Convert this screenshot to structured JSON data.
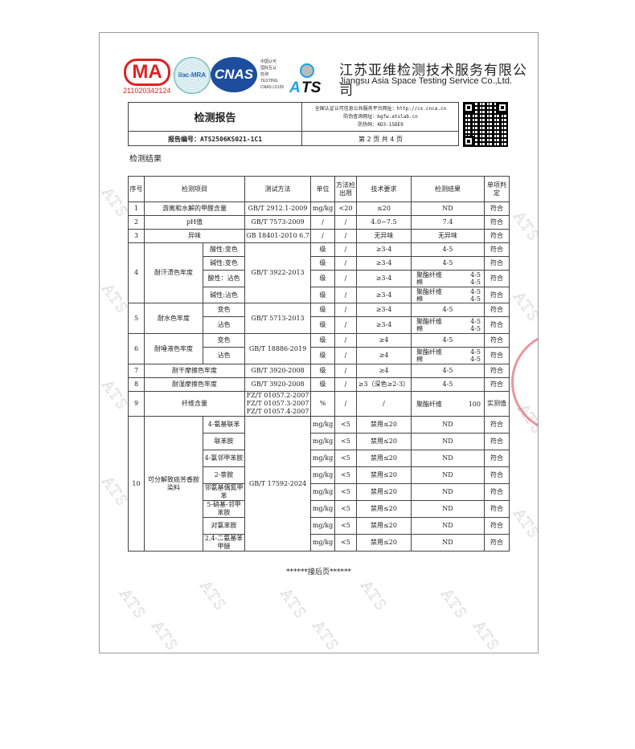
{
  "watermark": "ATS",
  "logos": {
    "cma": "MA",
    "cma_number": "211020342124",
    "ilac": "ilac-MRA",
    "cnas": "CNAS",
    "cnas_text": [
      "中国认可",
      "国际互认",
      "检测",
      "TESTING",
      "CNAS L5155"
    ],
    "ats": "ATS"
  },
  "company": {
    "name_cn": "江苏亚维检测技术服务有限公司",
    "name_en": "Jiangsu Asia Space Testing Service Co.,Ltd."
  },
  "report": {
    "title": "检测报告",
    "number": "报告编号：ATS2506KS021-1C1",
    "page": "第 2 页 共 4 页",
    "cnca": "全国认证认可信息公共服务平台网址：http://cx.cnca.cn",
    "verify_site": "防伪查询网址：bgfw.atslab.cn",
    "verify_code": "防伪码：4D3-15DE9"
  },
  "section_title": "检测结果",
  "table": {
    "headers": [
      "序号",
      "检测项目",
      "测试方法",
      "单位",
      "方法检出限",
      "技术要求",
      "检测结果",
      "单项判定"
    ],
    "groups": [
      {
        "no": "1",
        "item": "游离和水解的甲醛含量",
        "method": "GB/T 2912.1-2009",
        "rows": [
          {
            "unit": "mg/kg",
            "limit": "<20",
            "req": "≤20",
            "result": "ND",
            "verdict": "符合"
          }
        ]
      },
      {
        "no": "2",
        "item": "pH值",
        "method": "GB/T 7573-2009",
        "rows": [
          {
            "unit": "/",
            "limit": "/",
            "req": "4.0~7.5",
            "result": "7.4",
            "verdict": "符合"
          }
        ]
      },
      {
        "no": "3",
        "item": "异味",
        "method": "GB 18401-2010 6.7",
        "rows": [
          {
            "unit": "/",
            "limit": "/",
            "req": "无异味",
            "result": "无异味",
            "verdict": "符合"
          }
        ]
      },
      {
        "no": "4",
        "item": "耐汗渍色牢度",
        "method": "GB/T 3922-2013",
        "rows": [
          {
            "sub": "酸性:变色",
            "unit": "级",
            "limit": "/",
            "req": "≥3-4",
            "result": "4-5",
            "verdict": "符合"
          },
          {
            "sub": "碱性:变色",
            "unit": "级",
            "limit": "/",
            "req": "≥3-4",
            "result": "4-5",
            "verdict": "符合"
          },
          {
            "sub": "酸性：沾色",
            "unit": "级",
            "limit": "/",
            "req": "≥3-4",
            "result_multi": [
              [
                "聚酯纤维",
                "4-5"
              ],
              [
                "棉",
                "4-5"
              ]
            ],
            "verdict": "符合"
          },
          {
            "sub": "碱性:沾色",
            "unit": "级",
            "limit": "/",
            "req": "≥3-4",
            "result_multi": [
              [
                "聚酯纤维",
                "4-5"
              ],
              [
                "棉",
                "4-5"
              ]
            ],
            "verdict": "符合"
          }
        ]
      },
      {
        "no": "5",
        "item": "耐水色牢度",
        "method": "GB/T 5713-2013",
        "rows": [
          {
            "sub": "变色",
            "unit": "级",
            "limit": "/",
            "req": "≥3-4",
            "result": "4-5",
            "verdict": "符合"
          },
          {
            "sub": "沾色",
            "unit": "级",
            "limit": "/",
            "req": "≥3-4",
            "result_multi": [
              [
                "聚酯纤维",
                "4-5"
              ],
              [
                "棉",
                "4-5"
              ]
            ],
            "verdict": "符合"
          }
        ]
      },
      {
        "no": "6",
        "item": "耐唾液色牢度",
        "method": "GB/T  18886-2019",
        "rows": [
          {
            "sub": "变色",
            "unit": "级",
            "limit": "/",
            "req": "≥4",
            "result": "4-5",
            "verdict": "符合"
          },
          {
            "sub": "沾色",
            "unit": "级",
            "limit": "/",
            "req": "≥4",
            "result_multi": [
              [
                "聚酯纤维",
                "4-5"
              ],
              [
                "棉",
                "4-5"
              ]
            ],
            "verdict": "符合"
          }
        ]
      },
      {
        "no": "7",
        "item": "耐干摩擦色牢度",
        "method": "GB/T 3920-2008",
        "rows": [
          {
            "unit": "级",
            "limit": "/",
            "req": "≥4",
            "result": "4-5",
            "verdict": "符合"
          }
        ]
      },
      {
        "no": "8",
        "item": "耐湿摩擦色牢度",
        "method": "GB/T 3920-2008",
        "rows": [
          {
            "unit": "级",
            "limit": "/",
            "req": "≥3（深色≥2-3）",
            "result": "4-5",
            "verdict": "符合"
          }
        ]
      },
      {
        "no": "9",
        "item": "纤维含量",
        "method": "FZ/T 01057.2-2007\nFZ/T 01057.3-2007\nFZ/T 01057.4-2007",
        "rows": [
          {
            "unit": "%",
            "limit": "/",
            "req": "/",
            "result_multi": [
              [
                "聚酯纤维",
                "100"
              ]
            ],
            "verdict": "实测值"
          }
        ]
      },
      {
        "no": "10",
        "item": "可分解致癌芳香胺染料",
        "method": "GB/T 17592-2024",
        "rows": [
          {
            "sub": "4-氨基联苯",
            "unit": "mg/kg",
            "limit": "<5",
            "req": "禁用≤20",
            "result": "ND",
            "verdict": "符合"
          },
          {
            "sub": "联苯胺",
            "unit": "mg/kg",
            "limit": "<5",
            "req": "禁用≤20",
            "result": "ND",
            "verdict": "符合"
          },
          {
            "sub": "4-氯邻甲苯胺",
            "unit": "mg/kg",
            "limit": "<5",
            "req": "禁用≤20",
            "result": "ND",
            "verdict": "符合"
          },
          {
            "sub": "2-萘胺",
            "unit": "mg/kg",
            "limit": "<5",
            "req": "禁用≤20",
            "result": "ND",
            "verdict": "符合"
          },
          {
            "sub": "邻氨基偶氮甲苯",
            "unit": "mg/kg",
            "limit": "<5",
            "req": "禁用≤20",
            "result": "ND",
            "verdict": "符合"
          },
          {
            "sub": "5-硝基-邻甲苯胺",
            "unit": "mg/kg",
            "limit": "<5",
            "req": "禁用≤20",
            "result": "ND",
            "verdict": "符合"
          },
          {
            "sub": "对氯苯胺",
            "unit": "mg/kg",
            "limit": "<5",
            "req": "禁用≤20",
            "result": "ND",
            "verdict": "符合"
          },
          {
            "sub": "2,4-二氨基苯甲醚",
            "unit": "mg/kg",
            "limit": "<5",
            "req": "禁用≤20",
            "result": "ND",
            "verdict": "符合"
          }
        ]
      }
    ]
  },
  "end_note": "******接后页******",
  "colors": {
    "cma_red": "#dd2222",
    "cnas_blue": "#1d4e9e",
    "ats_blue": "#1ea0e0"
  }
}
